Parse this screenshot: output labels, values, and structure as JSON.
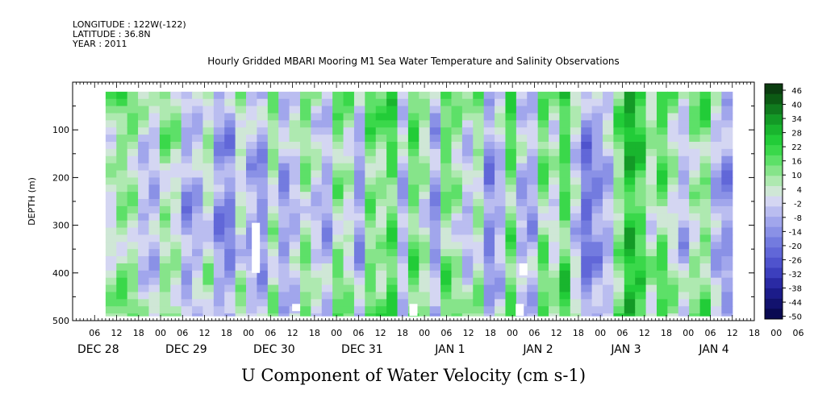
{
  "header": {
    "longitude": "LONGITUDE : 122W(-122)",
    "latitude": "LATITUDE : 36.8N",
    "year": "YEAR : 2011"
  },
  "chart_data": {
    "type": "heatmap",
    "title": "Hourly Gridded MBARI Mooring M1 Sea Water Temperature and Salinity Observations",
    "variable_title": "U Component of Water Velocity (cm s-1)",
    "ylabel": "DEPTH (m)",
    "y_axis": {
      "ylim": [
        0,
        500
      ],
      "inverted": true,
      "ticks": [
        100,
        200,
        300,
        400,
        500
      ]
    },
    "x_axis": {
      "start": "DEC 27 2011 18:00",
      "end": "JAN 4 2012 12:00",
      "hour_ticks": [
        "06",
        "12",
        "18",
        "00",
        "06",
        "12",
        "18",
        "00",
        "06",
        "12",
        "18",
        "00",
        "06",
        "12",
        "18",
        "00",
        "06",
        "12",
        "18",
        "00",
        "06",
        "12",
        "18",
        "00",
        "06",
        "12",
        "18",
        "00",
        "06",
        "12",
        "18",
        "00",
        "06"
      ],
      "day_labels": [
        "DEC 28",
        "DEC 29",
        "DEC 30",
        "DEC 31",
        "JAN 1",
        "JAN 2",
        "JAN 3",
        "JAN 4"
      ]
    },
    "data_extent": {
      "time_start": "DEC 28 2011 03:00",
      "time_end": "JAN 4 2012 06:00",
      "depth_min": 20,
      "depth_max": 490
    },
    "colorbar": {
      "labels": [
        "46",
        "40",
        "34",
        "28",
        "22",
        "16",
        "10",
        "4",
        "-2",
        "-8",
        "-14",
        "-20",
        "-26",
        "-32",
        "-38",
        "-44",
        "-50"
      ],
      "colors": [
        "#0b3d10",
        "#0c5a14",
        "#107a1e",
        "#139a26",
        "#19b52e",
        "#22cc38",
        "#3ad84a",
        "#5de068",
        "#86e48a",
        "#aee9b0",
        "#cfe7d6",
        "#d4d6f2",
        "#babdf0",
        "#a1a6ec",
        "#8a91e6",
        "#737bdf",
        "#6167d8",
        "#4f53cd",
        "#3c3fbd",
        "#2a2aa4",
        "#1c1c8a",
        "#12126e",
        "#0a0a52"
      ]
    },
    "column_means": [
      3,
      9,
      7,
      -4,
      -6,
      8,
      4,
      -10,
      -6,
      3,
      -12,
      -14,
      2,
      -8,
      -12,
      6,
      -10,
      -4,
      8,
      -2,
      -8,
      10,
      4,
      -10,
      12,
      8,
      16,
      -6,
      14,
      4,
      -10,
      12,
      6,
      -4,
      6,
      -14,
      -6,
      14,
      -6,
      -8,
      12,
      2,
      16,
      -2,
      -18,
      -12,
      -6,
      10,
      24,
      18,
      4,
      14,
      4,
      -6,
      6,
      10,
      -6,
      -12
    ],
    "depth_modifiers": [
      {
        "depth": 20,
        "offset": 6
      },
      {
        "depth": 100,
        "offset": 2
      },
      {
        "depth": 200,
        "offset": -1
      },
      {
        "depth": 300,
        "offset": -3
      },
      {
        "depth": 400,
        "offset": 2
      },
      {
        "depth": 490,
        "offset": 4
      }
    ],
    "missing_blocks": [
      {
        "time": "DEC 29 20:00",
        "depth_top": 295,
        "depth_bottom": 400
      },
      {
        "time": "DEC 30 07:00",
        "depth_top": 465,
        "depth_bottom": 480
      },
      {
        "time": "DEC 31 15:00",
        "depth_top": 465,
        "depth_bottom": 490
      },
      {
        "time": "JAN 1 20:00",
        "depth_top": 465,
        "depth_bottom": 490
      },
      {
        "time": "JAN 1 21:00",
        "depth_top": 380,
        "depth_bottom": 405
      }
    ]
  }
}
